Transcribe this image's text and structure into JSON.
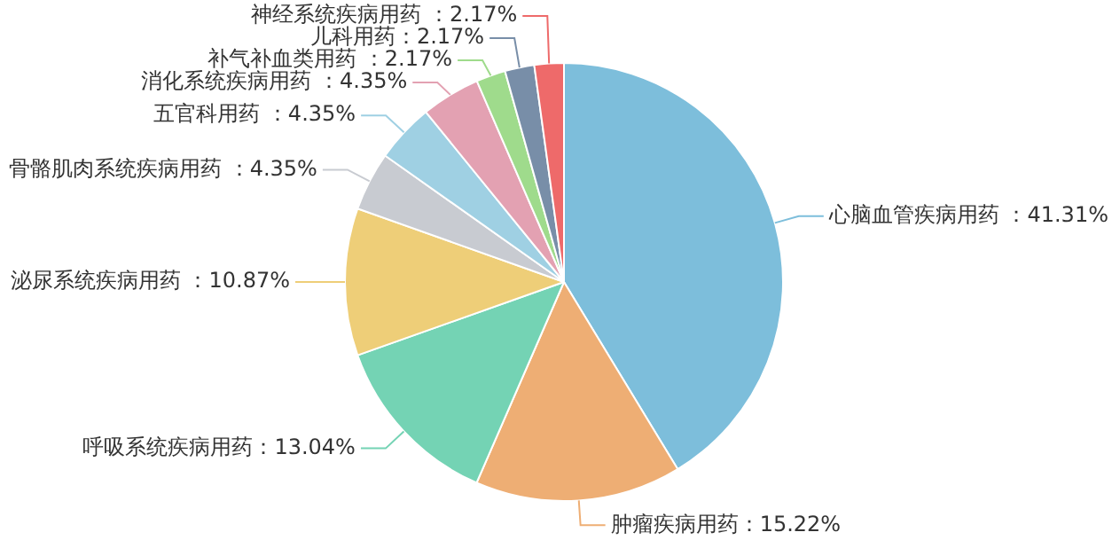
{
  "chart_data": {
    "type": "pie",
    "categories": [
      "心脑血管疾病用药",
      "肿瘤疾病用药",
      "呼吸系统疾病用药",
      "泌尿系统疾病用药",
      "骨骼肌肉系统疾病用药",
      "五官科用药",
      "消化系统疾病用药",
      "补气补血类用药",
      "儿科用药",
      "神经系统疾病用药"
    ],
    "values": [
      41.31,
      15.22,
      13.04,
      10.87,
      4.35,
      4.35,
      4.35,
      2.17,
      2.17,
      2.17
    ],
    "value_labels": [
      " ：41.31%",
      "：15.22%",
      "：13.04%",
      " ：10.87%",
      " ：4.35%",
      " ：4.35%",
      " ：4.35%",
      " ：2.17%",
      "：2.17%",
      " ：2.17%"
    ],
    "colors": [
      "#7dbedb",
      "#eeae74",
      "#74d3b4",
      "#eece78",
      "#c8cbd1",
      "#9fd0e3",
      "#e3a1b2",
      "#9fdb8c",
      "#788ea8",
      "#ee6a6a"
    ],
    "legend": false
  }
}
